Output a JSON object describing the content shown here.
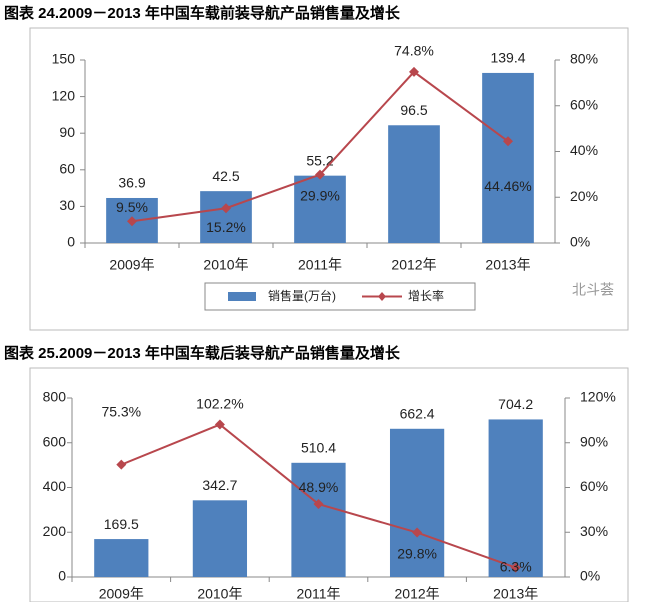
{
  "chart_data": [
    {
      "type": "combo",
      "title": "图表 24.2009－2013 年中国车载前装导航产品销售量及增长",
      "categories": [
        "2009年",
        "2010年",
        "2011年",
        "2012年",
        "2013年"
      ],
      "series": [
        {
          "name": "销售量(万台)",
          "type": "bar",
          "color": "#4f81bd",
          "values": [
            36.9,
            42.5,
            55.2,
            96.5,
            139.4
          ]
        },
        {
          "name": "增长率",
          "type": "line",
          "axis": "y2",
          "color": "#b8474d",
          "values": [
            9.5,
            15.2,
            29.9,
            74.8,
            44.46
          ],
          "value_labels": [
            "9.5%",
            "15.2%",
            "29.9%",
            "74.8%",
            "44.46%"
          ]
        }
      ],
      "ylim": [
        0,
        150
      ],
      "yticks": [
        0,
        30,
        60,
        90,
        120,
        150
      ],
      "y2lim": [
        0,
        80
      ],
      "y2ticks": [
        {
          "value": 0,
          "label": "0%"
        },
        {
          "value": 20,
          "label": "20%"
        },
        {
          "value": 40,
          "label": "40%"
        },
        {
          "value": 60,
          "label": "60%"
        },
        {
          "value": 80,
          "label": "80%"
        }
      ],
      "legend": "bottom",
      "watermark": "北斗荟"
    },
    {
      "type": "combo",
      "title": "图表 25.2009－2013 年中国车载后装导航产品销售量及增长",
      "categories": [
        "2009年",
        "2010年",
        "2011年",
        "2012年",
        "2013年"
      ],
      "series": [
        {
          "type": "bar",
          "color": "#4f81bd",
          "values": [
            169.5,
            342.7,
            510.4,
            662.4,
            704.2
          ]
        },
        {
          "type": "line",
          "axis": "y2",
          "color": "#b8474d",
          "values": [
            75.3,
            102.2,
            48.9,
            29.8,
            6.3
          ],
          "value_labels": [
            "75.3%",
            "102.2%",
            "48.9%",
            "29.8%",
            "6.3%"
          ]
        }
      ],
      "ylim": [
        0,
        800
      ],
      "yticks": [
        0,
        200,
        400,
        600,
        800
      ],
      "y2lim": [
        0,
        120
      ],
      "y2ticks": [
        {
          "value": 0,
          "label": "0%"
        },
        {
          "value": 30,
          "label": "30%"
        },
        {
          "value": 60,
          "label": "60%"
        },
        {
          "value": 90,
          "label": "90%"
        },
        {
          "value": 120,
          "label": "120%"
        }
      ]
    }
  ]
}
